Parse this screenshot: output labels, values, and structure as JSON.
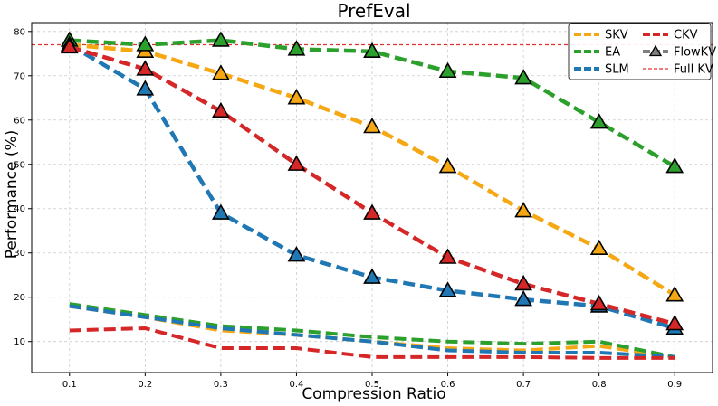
{
  "chart_data": {
    "type": "line",
    "title": "PrefEval",
    "xlabel": "Compression Ratio",
    "ylabel": "Performance (%)",
    "x": [
      0.1,
      0.2,
      0.3,
      0.4,
      0.5,
      0.6,
      0.7,
      0.8,
      0.9
    ],
    "x_tick_labels": [
      "0.1",
      "0.2",
      "0.3",
      "0.4",
      "0.5",
      "0.6",
      "0.7",
      "0.8",
      "0.9"
    ],
    "xlim": [
      0.05,
      0.95
    ],
    "ylim": [
      3,
      82
    ],
    "y_ticks": [
      10,
      20,
      30,
      40,
      50,
      60,
      70,
      80
    ],
    "y_tick_labels": [
      "10",
      "20",
      "30",
      "40",
      "50",
      "60",
      "70",
      "80"
    ],
    "grid": true,
    "legend_position": "top-right",
    "reference_line": {
      "name": "Full KV",
      "y": 77,
      "color": "#e03030"
    },
    "series": [
      {
        "name": "SKV",
        "color": "#f5a814",
        "values": [
          18,
          15.5,
          12.5,
          11.5,
          10,
          8.5,
          8,
          9,
          6.5
        ]
      },
      {
        "name": "EA",
        "color": "#2ca02c",
        "values": [
          18.5,
          16,
          13.5,
          12.5,
          11,
          10,
          9.5,
          10,
          6.5
        ]
      },
      {
        "name": "SLM",
        "color": "#1f77b4",
        "values": [
          18,
          15.5,
          13,
          11.5,
          10,
          8,
          7.5,
          7.5,
          6.5
        ]
      },
      {
        "name": "CKV",
        "color": "#d62728",
        "values": [
          12.5,
          13,
          8.5,
          8.5,
          6.5,
          6.5,
          6.5,
          6.3,
          6.3
        ]
      }
    ],
    "flowkv_series": [
      {
        "name": "SKV + FlowKV",
        "color": "#f5a814",
        "values": [
          77,
          75.5,
          70.5,
          65,
          58.5,
          49.5,
          39.5,
          31,
          20.5
        ]
      },
      {
        "name": "EA + FlowKV",
        "color": "#2ca02c",
        "values": [
          78,
          77,
          78,
          76,
          75.5,
          71,
          69.5,
          59.5,
          49.5
        ]
      },
      {
        "name": "SLM + FlowKV",
        "color": "#1f77b4",
        "values": [
          77,
          67,
          39,
          29.5,
          24.5,
          21.5,
          19.5,
          18,
          13
        ]
      },
      {
        "name": "CKV + FlowKV",
        "color": "#d62728",
        "values": [
          76.5,
          71.5,
          62,
          50,
          39,
          29,
          23,
          18.5,
          14
        ]
      }
    ],
    "legend": [
      {
        "label": "SKV",
        "color": "#f5a814",
        "kind": "dashed"
      },
      {
        "label": "CKV",
        "color": "#d62728",
        "kind": "dashed"
      },
      {
        "label": "EA",
        "color": "#2ca02c",
        "kind": "dashed"
      },
      {
        "label": "FlowKV",
        "color": "#7f7f7f",
        "kind": "marker"
      },
      {
        "label": "SLM",
        "color": "#1f77b4",
        "kind": "dashed"
      },
      {
        "label": "Full KV",
        "color": "#e03030",
        "kind": "thin-dashed"
      }
    ]
  }
}
